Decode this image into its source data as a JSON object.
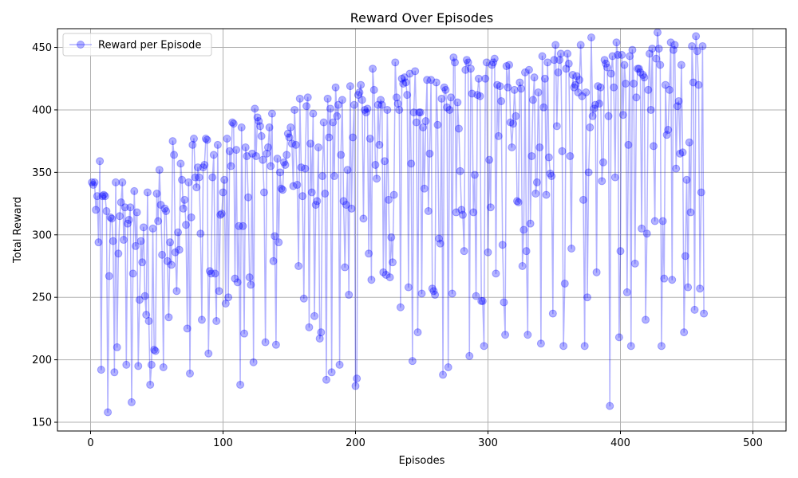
{
  "chart_data": {
    "type": "line",
    "title": "Reward Over Episodes",
    "xlabel": "Episodes",
    "ylabel": "Total Reward",
    "xlim": [
      -25,
      525
    ],
    "ylim": [
      143,
      465
    ],
    "xticks": [
      0,
      100,
      200,
      300,
      400,
      500
    ],
    "yticks": [
      150,
      200,
      250,
      300,
      350,
      400,
      450
    ],
    "grid": true,
    "legend_position": "upper-left",
    "series": [
      {
        "name": "Reward per Episode",
        "color": "#0000ff",
        "marker": "circle",
        "x_start": 1,
        "x_step": 1,
        "values": [
          342,
          340,
          342,
          320,
          331,
          294,
          359,
          192,
          331,
          332,
          331,
          319,
          158,
          267,
          314,
          313,
          295,
          190,
          342,
          210,
          285,
          315,
          326,
          342,
          296,
          322,
          196,
          309,
          312,
          322,
          166,
          269,
          335,
          291,
          318,
          195,
          248,
          295,
          278,
          306,
          251,
          236,
          334,
          231,
          180,
          196,
          305,
          208,
          207,
          333,
          311,
          352,
          324,
          284,
          194,
          321,
          319,
          279,
          234,
          294,
          276,
          375,
          364,
          286,
          255,
          302,
          288,
          357,
          344,
          321,
          328,
          308,
          225,
          342,
          189,
          314,
          372,
          377,
          346,
          338,
          354,
          346,
          301,
          232,
          354,
          356,
          377,
          376,
          205,
          271,
          269,
          346,
          364,
          269,
          231,
          372,
          255,
          316,
          317,
          334,
          344,
          245,
          377,
          250,
          367,
          355,
          390,
          389,
          265,
          368,
          262,
          307,
          180,
          386,
          307,
          221,
          370,
          363,
          330,
          266,
          260,
          365,
          198,
          401,
          363,
          394,
          391,
          387,
          379,
          360,
          334,
          214,
          365,
          370,
          386,
          355,
          397,
          279,
          299,
          212,
          361,
          294,
          350,
          337,
          336,
          358,
          356,
          364,
          381,
          378,
          386,
          373,
          339,
          400,
          372,
          340,
          275,
          409,
          354,
          331,
          249,
          353,
          403,
          410,
          226,
          373,
          334,
          397,
          235,
          324,
          327,
          370,
          217,
          222,
          347,
          390,
          333,
          184,
          409,
          378,
          401,
          190,
          390,
          347,
          418,
          395,
          404,
          196,
          364,
          408,
          327,
          274,
          324,
          352,
          252,
          419,
          321,
          378,
          404,
          179,
          185,
          412,
          414,
          420,
          408,
          313,
          400,
          398,
          401,
          285,
          377,
          264,
          433,
          416,
          356,
          345,
          404,
          372,
          408,
          404,
          270,
          359,
          268,
          400,
          328,
          266,
          298,
          278,
          332,
          438,
          410,
          405,
          400,
          242,
          425,
          421,
          426,
          422,
          412,
          258,
          429,
          357,
          199,
          398,
          431,
          390,
          222,
          398,
          398,
          253,
          386,
          337,
          391,
          424,
          319,
          365,
          424,
          257,
          255,
          252,
          422,
          388,
          297,
          293,
          409,
          188,
          418,
          416,
          402,
          194,
          400,
          410,
          253,
          442,
          438,
          318,
          406,
          385,
          351,
          320,
          316,
          287,
          432,
          440,
          438,
          203,
          433,
          413,
          318,
          348,
          251,
          412,
          425,
          411,
          247,
          247,
          211,
          425,
          438,
          286,
          360,
          322,
          436,
          438,
          441,
          269,
          420,
          379,
          419,
          407,
          292,
          246,
          220,
          435,
          418,
          436,
          390,
          370,
          389,
          416,
          395,
          327,
          326,
          422,
          417,
          275,
          304,
          430,
          287,
          220,
          432,
          309,
          363,
          408,
          426,
          333,
          342,
          414,
          370,
          213,
          443,
          402,
          425,
          332,
          438,
          362,
          349,
          347,
          237,
          440,
          452,
          387,
          430,
          440,
          445,
          367,
          211,
          261,
          433,
          445,
          437,
          363,
          289,
          428,
          418,
          420,
          427,
          414,
          424,
          452,
          411,
          328,
          211,
          414,
          250,
          350,
          386,
          458,
          395,
          401,
          404,
          270,
          419,
          405,
          418,
          343,
          358,
          440,
          437,
          434,
          395,
          163,
          429,
          443,
          418,
          346,
          454,
          444,
          218,
          287,
          444,
          396,
          436,
          421,
          254,
          372,
          443,
          211,
          448,
          421,
          277,
          410,
          433,
          433,
          430,
          305,
          428,
          426,
          232,
          301,
          416,
          445,
          400,
          449,
          371,
          311,
          441,
          462,
          449,
          436,
          211,
          311,
          265,
          420,
          380,
          384,
          416,
          454,
          264,
          448,
          452,
          353,
          403,
          407,
          365,
          436,
          366,
          222,
          283,
          344,
          258,
          374,
          318,
          451,
          422,
          240,
          459,
          447,
          420,
          257,
          334,
          451,
          237
        ]
      }
    ]
  }
}
